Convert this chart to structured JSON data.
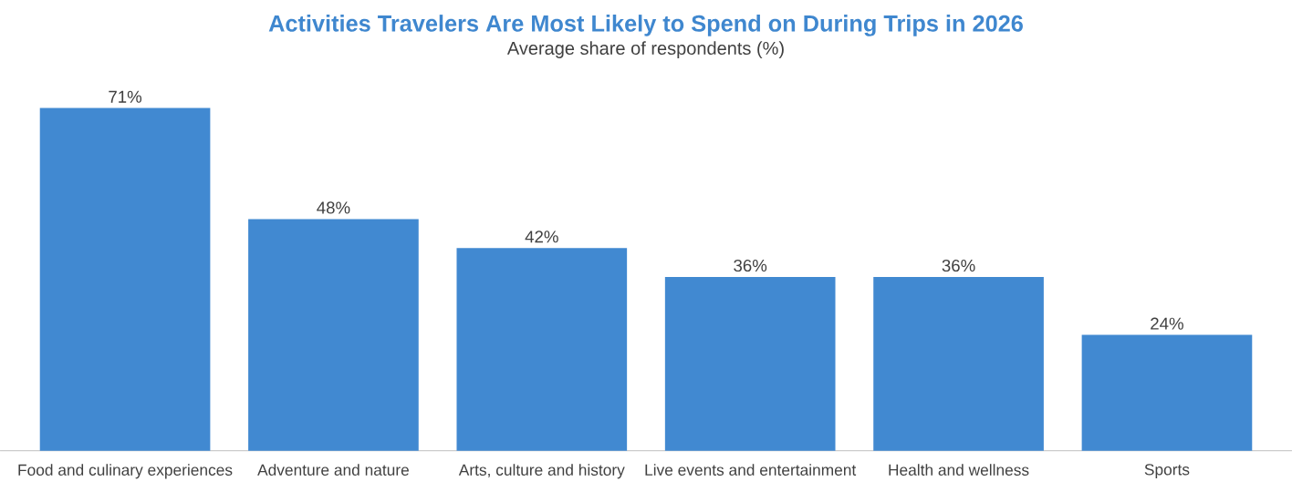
{
  "chart_data": {
    "type": "bar",
    "title": "Activities Travelers Are Most Likely to Spend on During Trips in 2026",
    "subtitle": "Average share of respondents (%)",
    "categories": [
      "Food and culinary experiences",
      "Adventure and nature",
      "Arts, culture and history",
      "Live events and entertainment",
      "Health and wellness",
      "Sports"
    ],
    "values": [
      71,
      48,
      42,
      36,
      36,
      24
    ],
    "value_labels": [
      "71%",
      "48%",
      "42%",
      "36%",
      "36%",
      "24%"
    ],
    "color": "#4189d1"
  }
}
